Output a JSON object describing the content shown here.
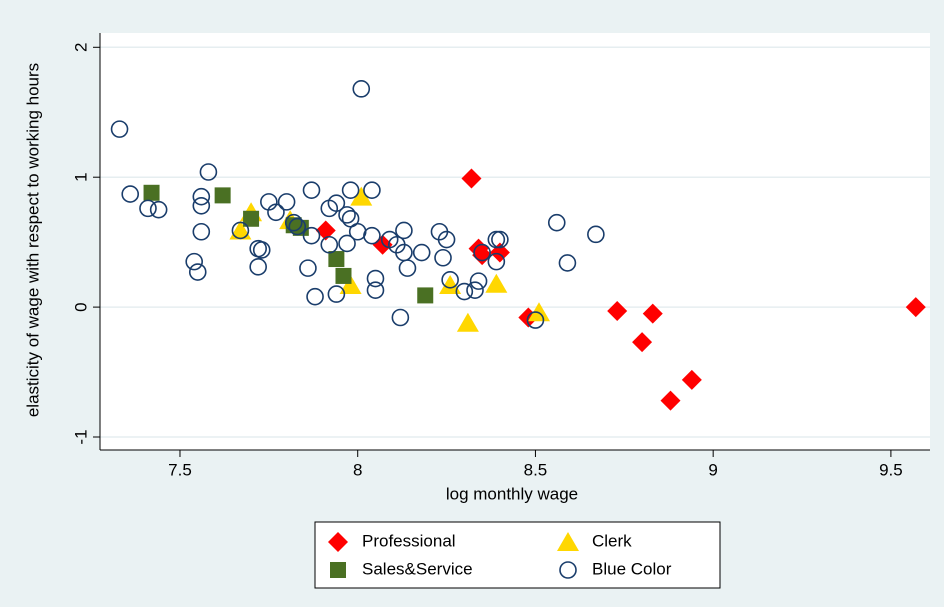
{
  "chart_data": {
    "type": "scatter",
    "x_label": "log monthly wage",
    "y_label": "elasticity of wage with respect to working hours",
    "xlim": [
      7.275,
      9.61
    ],
    "ylim": [
      -1.1,
      2.11
    ],
    "xticks": [
      7.5,
      8,
      8.5,
      9,
      9.5
    ],
    "yticks": [
      -1,
      0,
      1,
      2
    ],
    "grid": true,
    "legend": "bottom",
    "series": [
      {
        "name": "Professional",
        "color": "#ff0000",
        "marker": "diamond",
        "x": [
          8.32,
          7.91,
          8.07,
          8.34,
          8.4,
          8.35,
          8.48,
          8.73,
          8.83,
          8.8,
          8.94,
          8.88,
          9.57
        ],
        "values": [
          0.99,
          0.59,
          0.48,
          0.45,
          0.42,
          0.4,
          -0.08,
          -0.03,
          -0.05,
          -0.27,
          -0.56,
          -0.72,
          0.0
        ]
      },
      {
        "name": "Clerk",
        "color": "#ffd700",
        "marker": "triangle",
        "x": [
          8.01,
          7.7,
          7.67,
          7.81,
          7.98,
          8.26,
          8.31,
          8.39,
          8.51
        ],
        "values": [
          0.85,
          0.73,
          0.59,
          0.67,
          0.17,
          0.17,
          -0.12,
          0.18,
          -0.04
        ]
      },
      {
        "name": "Sales&Service",
        "color": "#4a7023",
        "marker": "square",
        "x": [
          7.42,
          7.62,
          7.7,
          7.82,
          7.84,
          7.94,
          7.96,
          8.19
        ],
        "values": [
          0.88,
          0.86,
          0.68,
          0.63,
          0.61,
          0.37,
          0.24,
          0.09
        ]
      },
      {
        "name": "Blue Color",
        "color": "#1a3d6b",
        "marker": "circle",
        "x": [
          7.33,
          7.36,
          7.41,
          7.44,
          7.58,
          7.56,
          7.56,
          7.56,
          7.54,
          7.55,
          7.67,
          7.72,
          7.73,
          7.72,
          7.75,
          7.77,
          7.8,
          7.82,
          7.83,
          7.87,
          7.87,
          7.86,
          7.88,
          7.92,
          7.92,
          7.94,
          7.97,
          7.98,
          7.97,
          7.98,
          8.01,
          8.04,
          8.0,
          8.04,
          7.94,
          8.05,
          8.05,
          8.09,
          8.11,
          8.13,
          8.13,
          8.14,
          8.12,
          8.18,
          8.23,
          8.25,
          8.24,
          8.26,
          8.3,
          8.33,
          8.34,
          8.35,
          8.39,
          8.4,
          8.39,
          8.56,
          8.59,
          8.67,
          8.5
        ],
        "values": [
          1.37,
          0.87,
          0.76,
          0.75,
          1.04,
          0.85,
          0.78,
          0.58,
          0.35,
          0.27,
          0.59,
          0.45,
          0.44,
          0.31,
          0.81,
          0.73,
          0.81,
          0.65,
          0.62,
          0.9,
          0.55,
          0.3,
          0.08,
          0.48,
          0.76,
          0.8,
          0.71,
          0.68,
          0.49,
          0.9,
          1.68,
          0.9,
          0.58,
          0.55,
          0.1,
          0.22,
          0.13,
          0.52,
          0.48,
          0.42,
          0.59,
          0.3,
          -0.08,
          0.42,
          0.58,
          0.52,
          0.38,
          0.21,
          0.12,
          0.13,
          0.2,
          0.42,
          0.52,
          0.52,
          0.35,
          0.65,
          0.34,
          0.56,
          -0.1
        ]
      }
    ]
  }
}
